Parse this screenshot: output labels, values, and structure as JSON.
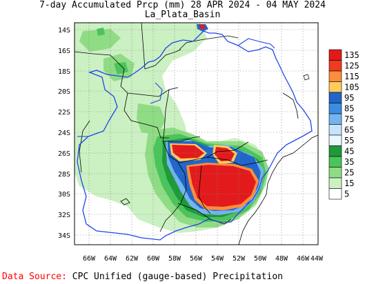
{
  "title_line1": "7-day Accumulated Prcp (mm) 28 APR 2024 - 04 MAY 2024",
  "title_line2": "La_Plata_Basin",
  "lat_labels": [
    "14S",
    "16S",
    "18S",
    "20S",
    "22S",
    "24S",
    "26S",
    "28S",
    "30S",
    "32S",
    "34S"
  ],
  "lon_labels": [
    "66W",
    "64W",
    "62W",
    "60W",
    "58W",
    "56W",
    "54W",
    "52W",
    "50W",
    "48W",
    "46W",
    "44W"
  ],
  "legend": {
    "labels": [
      "135",
      "125",
      "115",
      "105",
      "95",
      "85",
      "75",
      "65",
      "55",
      "45",
      "35",
      "25",
      "15",
      "5"
    ],
    "colors": [
      "#e31a1c",
      "#f03b20",
      "#fd8d3c",
      "#fecc5c",
      "#2166c9",
      "#3a8de0",
      "#74b4f0",
      "#c6e4fc",
      "#e9f6fb",
      "#1f9a3a",
      "#4cc45c",
      "#8fdc85",
      "#cbf0c2",
      "#ffffff"
    ]
  },
  "source": {
    "label": "Data Source:",
    "text": "CPC Unified (gauge-based) Precipitation"
  }
}
